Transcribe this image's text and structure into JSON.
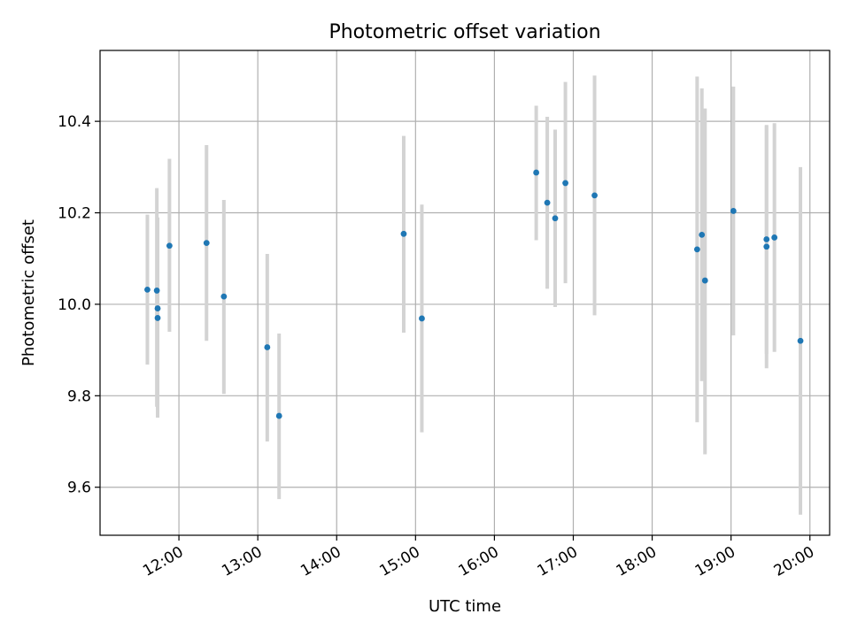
{
  "chart_data": {
    "type": "scatter",
    "title": "Photometric offset variation",
    "xlabel": "UTC time",
    "ylabel": "Photometric offset",
    "x_unit": "hours (UTC)",
    "xlim": [
      11.0,
      20.25
    ],
    "ylim": [
      9.495,
      10.555
    ],
    "x_ticks": [
      {
        "value": 12,
        "label": "12:00"
      },
      {
        "value": 13,
        "label": "13:00"
      },
      {
        "value": 14,
        "label": "14:00"
      },
      {
        "value": 15,
        "label": "15:00"
      },
      {
        "value": 16,
        "label": "16:00"
      },
      {
        "value": 17,
        "label": "17:00"
      },
      {
        "value": 18,
        "label": "18:00"
      },
      {
        "value": 19,
        "label": "19:00"
      },
      {
        "value": 20,
        "label": "20:00"
      }
    ],
    "y_ticks": [
      {
        "value": 9.6,
        "label": "9.6"
      },
      {
        "value": 9.8,
        "label": "9.8"
      },
      {
        "value": 10.0,
        "label": "10.0"
      },
      {
        "value": 10.2,
        "label": "10.2"
      },
      {
        "value": 10.4,
        "label": "10.4"
      }
    ],
    "grid": true,
    "marker_color": "#1f77b4",
    "errorbar_color": "#d3d3d3",
    "series": [
      {
        "points": [
          {
            "x": 11.6,
            "y": 10.032,
            "err_low": 9.868,
            "err_high": 10.196
          },
          {
            "x": 11.72,
            "y": 10.03,
            "err_low": 9.776,
            "err_high": 10.254
          },
          {
            "x": 11.73,
            "y": 9.991,
            "err_low": 9.778,
            "err_high": 10.19
          },
          {
            "x": 11.73,
            "y": 9.97,
            "err_low": 9.752,
            "err_high": 10.188
          },
          {
            "x": 11.88,
            "y": 10.128,
            "err_low": 9.94,
            "err_high": 10.318
          },
          {
            "x": 12.35,
            "y": 10.134,
            "err_low": 9.92,
            "err_high": 10.348
          },
          {
            "x": 12.57,
            "y": 10.017,
            "err_low": 9.804,
            "err_high": 10.228
          },
          {
            "x": 13.12,
            "y": 9.906,
            "err_low": 9.7,
            "err_high": 10.11
          },
          {
            "x": 13.27,
            "y": 9.756,
            "err_low": 9.574,
            "err_high": 9.936
          },
          {
            "x": 14.85,
            "y": 10.154,
            "err_low": 9.938,
            "err_high": 10.368
          },
          {
            "x": 15.08,
            "y": 9.969,
            "err_low": 9.72,
            "err_high": 10.218
          },
          {
            "x": 16.53,
            "y": 10.288,
            "err_low": 10.14,
            "err_high": 10.434
          },
          {
            "x": 16.67,
            "y": 10.222,
            "err_low": 10.034,
            "err_high": 10.41
          },
          {
            "x": 16.77,
            "y": 10.188,
            "err_low": 9.994,
            "err_high": 10.382
          },
          {
            "x": 16.9,
            "y": 10.265,
            "err_low": 10.046,
            "err_high": 10.486
          },
          {
            "x": 17.27,
            "y": 10.238,
            "err_low": 9.976,
            "err_high": 10.5
          },
          {
            "x": 18.57,
            "y": 10.12,
            "err_low": 9.742,
            "err_high": 10.498
          },
          {
            "x": 18.63,
            "y": 10.152,
            "err_low": 9.832,
            "err_high": 10.472
          },
          {
            "x": 18.67,
            "y": 10.052,
            "err_low": 9.672,
            "err_high": 10.428
          },
          {
            "x": 19.03,
            "y": 10.204,
            "err_low": 9.932,
            "err_high": 10.476
          },
          {
            "x": 19.45,
            "y": 10.142,
            "err_low": 9.892,
            "err_high": 10.392
          },
          {
            "x": 19.45,
            "y": 10.126,
            "err_low": 9.86,
            "err_high": 10.39
          },
          {
            "x": 19.55,
            "y": 10.146,
            "err_low": 9.896,
            "err_high": 10.396
          },
          {
            "x": 19.88,
            "y": 9.92,
            "err_low": 9.54,
            "err_high": 10.3
          }
        ]
      }
    ]
  }
}
